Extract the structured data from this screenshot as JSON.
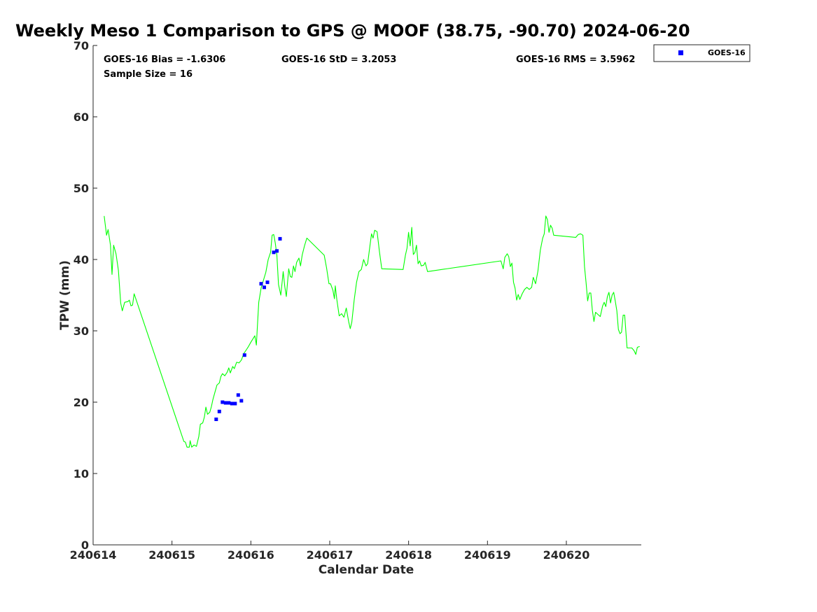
{
  "colors": {
    "gps_line": "#00ff00",
    "goes_marker": "#0000ff",
    "axis": "#262626"
  },
  "stats": {
    "bias": "GOES-16 Bias = -1.6306",
    "std": "GOES-16 StD = 3.2053",
    "rms": "GOES-16 RMS = 3.5962",
    "sample": "Sample Size = 16"
  },
  "legend": {
    "placement": "outside-top-right",
    "label": "GOES-16"
  },
  "chart_data": {
    "type": "line",
    "title": "Weekly Meso 1 Comparison to GPS @ MOOF (38.75, -90.70) 2024-06-20",
    "xlabel": "Calendar Date",
    "ylabel": "TPW (mm)",
    "xlim": [
      240614.0,
      240620.95
    ],
    "ylim": [
      0,
      70
    ],
    "x_ticks": [
      240614,
      240615,
      240616,
      240617,
      240618,
      240619,
      240620
    ],
    "x_tick_labels": [
      "240614",
      "240615",
      "240616",
      "240617",
      "240618",
      "240619",
      "240620"
    ],
    "y_ticks": [
      0,
      10,
      20,
      30,
      40,
      50,
      60,
      70
    ],
    "y_tick_labels": [
      "0",
      "10",
      "20",
      "30",
      "40",
      "50",
      "60",
      "70"
    ],
    "grid": false,
    "series": [
      {
        "kind": "line",
        "points": [
          [
            240614.14,
            46.1
          ],
          [
            240614.17,
            43.4
          ],
          [
            240614.19,
            44.2
          ],
          [
            240614.22,
            42.0
          ],
          [
            240614.24,
            37.9
          ],
          [
            240614.26,
            42.0
          ],
          [
            240614.29,
            40.8
          ],
          [
            240614.32,
            38.5
          ],
          [
            240614.35,
            33.9
          ],
          [
            240614.37,
            32.8
          ],
          [
            240614.4,
            34.0
          ],
          [
            240614.44,
            34.1
          ],
          [
            240614.46,
            34.3
          ],
          [
            240614.48,
            33.5
          ],
          [
            240614.5,
            33.6
          ],
          [
            240614.52,
            35.2
          ],
          [
            240614.55,
            34.2
          ],
          [
            240615.15,
            14.5
          ],
          [
            240615.17,
            14.4
          ],
          [
            240615.19,
            13.7
          ],
          [
            240615.22,
            13.7
          ],
          [
            240615.23,
            14.6
          ],
          [
            240615.25,
            13.7
          ],
          [
            240615.28,
            14.0
          ],
          [
            240615.31,
            13.8
          ],
          [
            240615.34,
            15.2
          ],
          [
            240615.36,
            16.9
          ],
          [
            240615.39,
            17.1
          ],
          [
            240615.41,
            17.9
          ],
          [
            240615.43,
            19.3
          ],
          [
            240615.45,
            18.3
          ],
          [
            240615.48,
            18.6
          ],
          [
            240615.5,
            19.4
          ],
          [
            240615.52,
            20.4
          ],
          [
            240615.55,
            21.6
          ],
          [
            240615.57,
            22.4
          ],
          [
            240615.6,
            22.7
          ],
          [
            240615.62,
            23.6
          ],
          [
            240615.64,
            24.0
          ],
          [
            240615.67,
            23.7
          ],
          [
            240615.7,
            24.2
          ],
          [
            240615.72,
            24.8
          ],
          [
            240615.74,
            24.1
          ],
          [
            240615.77,
            25.0
          ],
          [
            240615.79,
            24.7
          ],
          [
            240615.82,
            25.6
          ],
          [
            240615.85,
            25.5
          ],
          [
            240615.88,
            25.9
          ],
          [
            240615.91,
            26.8
          ],
          [
            240615.94,
            27.3
          ],
          [
            240615.97,
            27.8
          ],
          [
            240616.0,
            28.4
          ],
          [
            240616.05,
            29.3
          ],
          [
            240616.07,
            28.0
          ],
          [
            240616.08,
            30.0
          ],
          [
            240616.1,
            34.0
          ],
          [
            240616.13,
            36.0
          ],
          [
            240616.16,
            37.1
          ],
          [
            240616.19,
            38.2
          ],
          [
            240616.22,
            40.0
          ],
          [
            240616.25,
            41.0
          ],
          [
            240616.27,
            43.4
          ],
          [
            240616.29,
            43.5
          ],
          [
            240616.31,
            42.3
          ],
          [
            240616.33,
            40.6
          ],
          [
            240616.35,
            36.5
          ],
          [
            240616.38,
            35.0
          ],
          [
            240616.41,
            38.3
          ],
          [
            240616.43,
            36.2
          ],
          [
            240616.45,
            34.8
          ],
          [
            240616.48,
            38.7
          ],
          [
            240616.5,
            37.6
          ],
          [
            240616.52,
            37.5
          ],
          [
            240616.54,
            39.1
          ],
          [
            240616.56,
            38.3
          ],
          [
            240616.58,
            39.6
          ],
          [
            240616.61,
            40.2
          ],
          [
            240616.63,
            39.1
          ],
          [
            240616.65,
            40.6
          ],
          [
            240616.68,
            41.9
          ],
          [
            240616.71,
            43.0
          ],
          [
            240616.93,
            40.6
          ],
          [
            240616.96,
            38.8
          ],
          [
            240616.99,
            36.6
          ],
          [
            240617.01,
            36.6
          ],
          [
            240617.04,
            35.7
          ],
          [
            240617.06,
            34.5
          ],
          [
            240617.07,
            36.3
          ],
          [
            240617.09,
            34.4
          ],
          [
            240617.12,
            32.1
          ],
          [
            240617.15,
            32.4
          ],
          [
            240617.18,
            31.9
          ],
          [
            240617.21,
            33.2
          ],
          [
            240617.24,
            31.3
          ],
          [
            240617.26,
            30.3
          ],
          [
            240617.28,
            31.2
          ],
          [
            240617.31,
            34.3
          ],
          [
            240617.34,
            36.8
          ],
          [
            240617.37,
            38.3
          ],
          [
            240617.4,
            38.6
          ],
          [
            240617.43,
            40.0
          ],
          [
            240617.46,
            39.1
          ],
          [
            240617.48,
            39.4
          ],
          [
            240617.51,
            41.9
          ],
          [
            240617.53,
            43.6
          ],
          [
            240617.55,
            43.0
          ],
          [
            240617.57,
            44.1
          ],
          [
            240617.6,
            43.9
          ],
          [
            240617.63,
            41.1
          ],
          [
            240617.66,
            38.7
          ],
          [
            240617.93,
            38.6
          ],
          [
            240617.96,
            40.6
          ],
          [
            240617.98,
            41.6
          ],
          [
            240618.0,
            43.8
          ],
          [
            240618.02,
            41.9
          ],
          [
            240618.04,
            44.5
          ],
          [
            240618.06,
            40.7
          ],
          [
            240618.08,
            41.0
          ],
          [
            240618.1,
            42.0
          ],
          [
            240618.12,
            39.4
          ],
          [
            240618.14,
            39.8
          ],
          [
            240618.16,
            39.1
          ],
          [
            240618.19,
            39.2
          ],
          [
            240618.21,
            39.6
          ],
          [
            240618.24,
            38.3
          ],
          [
            240619.17,
            39.8
          ],
          [
            240619.2,
            38.7
          ],
          [
            240619.22,
            40.3
          ],
          [
            240619.25,
            40.8
          ],
          [
            240619.27,
            40.4
          ],
          [
            240619.29,
            39.0
          ],
          [
            240619.31,
            39.5
          ],
          [
            240619.33,
            36.8
          ],
          [
            240619.35,
            36.0
          ],
          [
            240619.37,
            34.3
          ],
          [
            240619.39,
            35.1
          ],
          [
            240619.41,
            34.4
          ],
          [
            240619.44,
            35.2
          ],
          [
            240619.47,
            35.8
          ],
          [
            240619.5,
            36.1
          ],
          [
            240619.53,
            35.8
          ],
          [
            240619.56,
            36.1
          ],
          [
            240619.58,
            37.5
          ],
          [
            240619.61,
            36.6
          ],
          [
            240619.64,
            38.4
          ],
          [
            240619.67,
            41.3
          ],
          [
            240619.7,
            43.0
          ],
          [
            240619.72,
            43.6
          ],
          [
            240619.74,
            46.1
          ],
          [
            240619.76,
            45.6
          ],
          [
            240619.78,
            43.8
          ],
          [
            240619.8,
            44.8
          ],
          [
            240619.82,
            44.4
          ],
          [
            240619.84,
            43.4
          ],
          [
            240620.12,
            43.1
          ],
          [
            240620.15,
            43.5
          ],
          [
            240620.18,
            43.6
          ],
          [
            240620.21,
            43.4
          ],
          [
            240620.23,
            39.0
          ],
          [
            240620.25,
            36.8
          ],
          [
            240620.27,
            34.2
          ],
          [
            240620.29,
            35.3
          ],
          [
            240620.31,
            35.3
          ],
          [
            240620.33,
            32.9
          ],
          [
            240620.35,
            31.3
          ],
          [
            240620.37,
            32.6
          ],
          [
            240620.4,
            32.3
          ],
          [
            240620.43,
            32.0
          ],
          [
            240620.46,
            33.5
          ],
          [
            240620.48,
            34.0
          ],
          [
            240620.5,
            33.4
          ],
          [
            240620.52,
            34.8
          ],
          [
            240620.54,
            35.4
          ],
          [
            240620.56,
            33.9
          ],
          [
            240620.58,
            35.0
          ],
          [
            240620.6,
            35.4
          ],
          [
            240620.62,
            34.2
          ],
          [
            240620.64,
            32.8
          ],
          [
            240620.66,
            30.2
          ],
          [
            240620.68,
            29.6
          ],
          [
            240620.7,
            29.8
          ],
          [
            240620.72,
            32.2
          ],
          [
            240620.74,
            32.2
          ],
          [
            240620.77,
            27.6
          ],
          [
            240620.8,
            27.6
          ],
          [
            240620.83,
            27.6
          ],
          [
            240620.86,
            27.2
          ],
          [
            240620.88,
            26.7
          ],
          [
            240620.9,
            27.7
          ],
          [
            240620.93,
            27.8
          ]
        ]
      },
      {
        "kind": "scatter",
        "name": "GOES-16",
        "points": [
          [
            240615.56,
            17.6
          ],
          [
            240615.6,
            18.7
          ],
          [
            240615.64,
            20.0
          ],
          [
            240615.68,
            19.9
          ],
          [
            240615.72,
            19.9
          ],
          [
            240615.76,
            19.8
          ],
          [
            240615.8,
            19.8
          ],
          [
            240615.84,
            21.0
          ],
          [
            240615.88,
            20.2
          ],
          [
            240615.92,
            26.6
          ],
          [
            240616.13,
            36.6
          ],
          [
            240616.17,
            36.1
          ],
          [
            240616.21,
            36.8
          ],
          [
            240616.29,
            41.0
          ],
          [
            240616.33,
            41.2
          ],
          [
            240616.37,
            42.9
          ]
        ]
      }
    ]
  }
}
